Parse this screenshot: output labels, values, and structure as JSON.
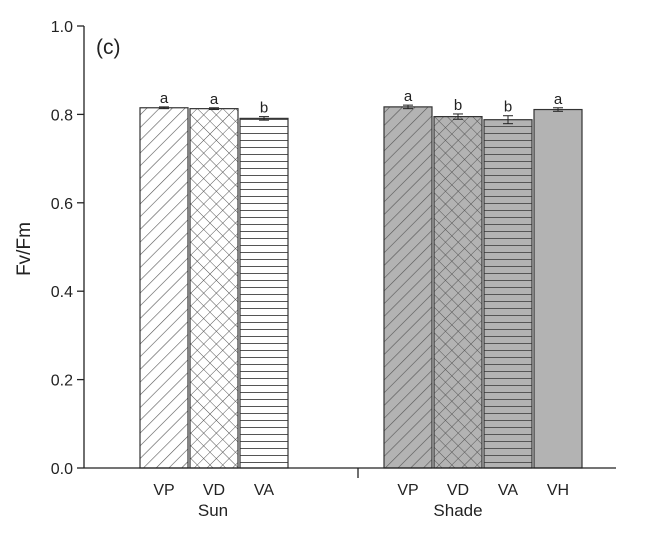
{
  "chart_data": {
    "type": "bar",
    "panel_label": "(c)",
    "ylabel": "Fv/Fm",
    "ylim": [
      0,
      1.0
    ],
    "yticks": [
      "0.0",
      "0.2",
      "0.4",
      "0.6",
      "0.8",
      "1.0"
    ],
    "groups": [
      {
        "name": "Sun",
        "bars": [
          {
            "label": "VP",
            "value": 0.815,
            "error": 0.002,
            "letter": "a",
            "pattern": "diag"
          },
          {
            "label": "VD",
            "value": 0.813,
            "error": 0.002,
            "letter": "a",
            "pattern": "cross"
          },
          {
            "label": "VA",
            "value": 0.791,
            "error": 0.004,
            "letter": "b",
            "pattern": "horiz"
          }
        ]
      },
      {
        "name": "Shade",
        "bars": [
          {
            "label": "VP",
            "value": 0.817,
            "error": 0.004,
            "letter": "a",
            "pattern": "diag"
          },
          {
            "label": "VD",
            "value": 0.795,
            "error": 0.006,
            "letter": "b",
            "pattern": "cross"
          },
          {
            "label": "VA",
            "value": 0.788,
            "error": 0.009,
            "letter": "b",
            "pattern": "horiz"
          },
          {
            "label": "VH",
            "value": 0.811,
            "error": 0.004,
            "letter": "a",
            "pattern": "solid"
          }
        ]
      }
    ],
    "colors": {
      "sun_fill": "#ffffff",
      "shade_fill": "#b3b3b3",
      "outline": "#333333",
      "hatch": "#555555"
    }
  }
}
